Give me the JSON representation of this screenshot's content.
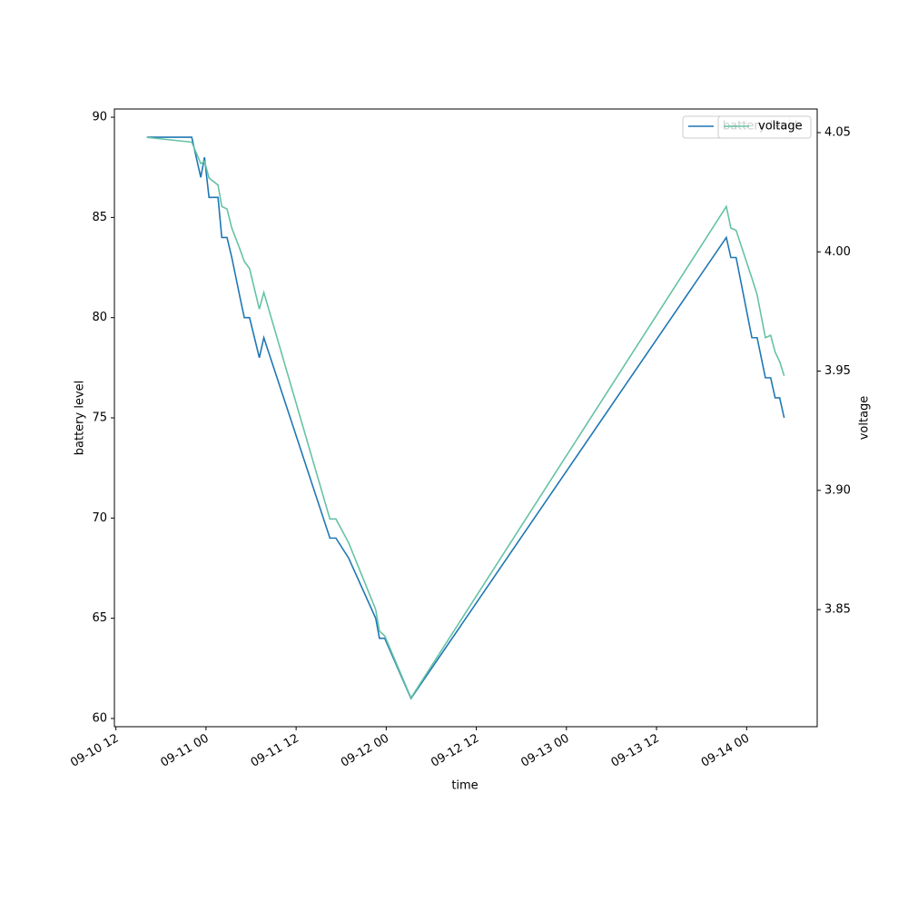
{
  "chart_data": {
    "type": "line",
    "x": [
      "09-10 16:06",
      "09-10 22:06",
      "09-10 23:18",
      "09-10 23:48",
      "09-11 00:24",
      "09-11 01:36",
      "09-11 02:06",
      "09-11 02:48",
      "09-11 03:26",
      "09-11 04:32",
      "09-11 05:06",
      "09-11 05:48",
      "09-11 07:06",
      "09-11 07:42",
      "09-11 16:30",
      "09-11 17:18",
      "09-11 19:00",
      "09-11 22:36",
      "09-11 23:06",
      "09-11 23:48",
      "09-12 03:18",
      "09-13 21:18",
      "09-13 21:54",
      "09-13 22:36",
      "09-14 00:42",
      "09-14 01:24",
      "09-14 02:30",
      "09-14 03:12",
      "09-14 03:48",
      "09-14 04:24",
      "09-14 05:00"
    ],
    "series": [
      {
        "name": "battery level",
        "color": "#1f77b4",
        "values": [
          89,
          89,
          87,
          88,
          86,
          86,
          84,
          84,
          83,
          81,
          80,
          80,
          78,
          79,
          69,
          69,
          68,
          65,
          64,
          64,
          61,
          84,
          83,
          83,
          79,
          79,
          77,
          77,
          76,
          76,
          75
        ]
      },
      {
        "name": "voltage",
        "color": "#66c2a5",
        "axis": "y2",
        "values": [
          4.048,
          4.046,
          4.037,
          4.038,
          4.031,
          4.028,
          4.019,
          4.018,
          4.01,
          4.001,
          3.996,
          3.993,
          3.976,
          3.983,
          3.888,
          3.888,
          3.878,
          3.85,
          3.841,
          3.839,
          3.813,
          4.019,
          4.01,
          4.009,
          3.989,
          3.982,
          3.964,
          3.965,
          3.958,
          3.954,
          3.948
        ]
      }
    ],
    "xlabel": "time",
    "ylabel": "battery level",
    "y2label": "voltage",
    "xlim": [
      "09-10 11:48",
      "09-14 09:24"
    ],
    "xticks": [
      "09-10 12",
      "09-11 00",
      "09-11 12",
      "09-12 00",
      "09-12 12",
      "09-13 00",
      "09-13 12",
      "09-14 00"
    ],
    "ylim": [
      59.59,
      90.41
    ],
    "yticks": [
      60,
      65,
      70,
      75,
      80,
      85,
      90
    ],
    "y2lim": [
      3.8009,
      4.0599
    ],
    "y2ticks": [
      3.85,
      {
        "value": 3.9,
        "label": "3.90"
      },
      3.95,
      {
        "value": 4.0,
        "label": "4.00"
      },
      4.05
    ],
    "legend": "upper right",
    "grid": false
  }
}
